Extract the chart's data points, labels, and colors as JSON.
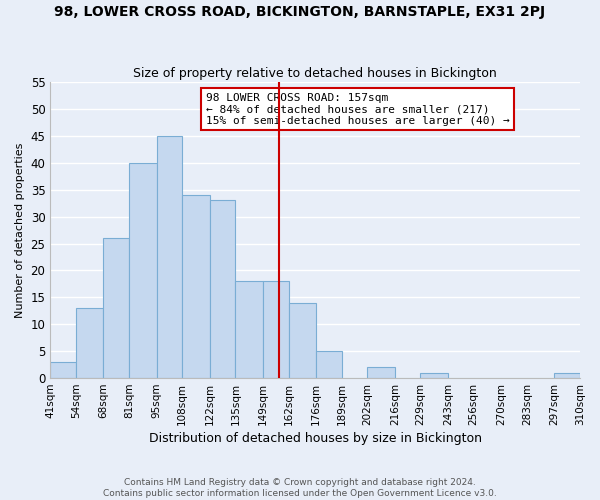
{
  "title": "98, LOWER CROSS ROAD, BICKINGTON, BARNSTAPLE, EX31 2PJ",
  "subtitle": "Size of property relative to detached houses in Bickington",
  "xlabel": "Distribution of detached houses by size in Bickington",
  "ylabel": "Number of detached properties",
  "bar_edges": [
    41,
    54,
    68,
    81,
    95,
    108,
    122,
    135,
    149,
    162,
    176,
    189,
    202,
    216,
    229,
    243,
    256,
    270,
    283,
    297,
    310
  ],
  "bar_heights": [
    3,
    13,
    26,
    40,
    45,
    34,
    33,
    18,
    18,
    14,
    5,
    0,
    2,
    0,
    1,
    0,
    0,
    0,
    0,
    1
  ],
  "tick_labels": [
    "41sqm",
    "54sqm",
    "68sqm",
    "81sqm",
    "95sqm",
    "108sqm",
    "122sqm",
    "135sqm",
    "149sqm",
    "162sqm",
    "176sqm",
    "189sqm",
    "202sqm",
    "216sqm",
    "229sqm",
    "243sqm",
    "256sqm",
    "270sqm",
    "283sqm",
    "297sqm",
    "310sqm"
  ],
  "bar_color": "#c5d8ef",
  "bar_edge_color": "#7aadd4",
  "vline_x": 157,
  "vline_color": "#cc0000",
  "ylim": [
    0,
    55
  ],
  "yticks": [
    0,
    5,
    10,
    15,
    20,
    25,
    30,
    35,
    40,
    45,
    50,
    55
  ],
  "annotation_title": "98 LOWER CROSS ROAD: 157sqm",
  "annotation_line1": "← 84% of detached houses are smaller (217)",
  "annotation_line2": "15% of semi-detached houses are larger (40) →",
  "annotation_box_color": "#ffffff",
  "annotation_border_color": "#cc0000",
  "footer_line1": "Contains HM Land Registry data © Crown copyright and database right 2024.",
  "footer_line2": "Contains public sector information licensed under the Open Government Licence v3.0.",
  "background_color": "#e8eef8",
  "grid_color": "#ffffff"
}
